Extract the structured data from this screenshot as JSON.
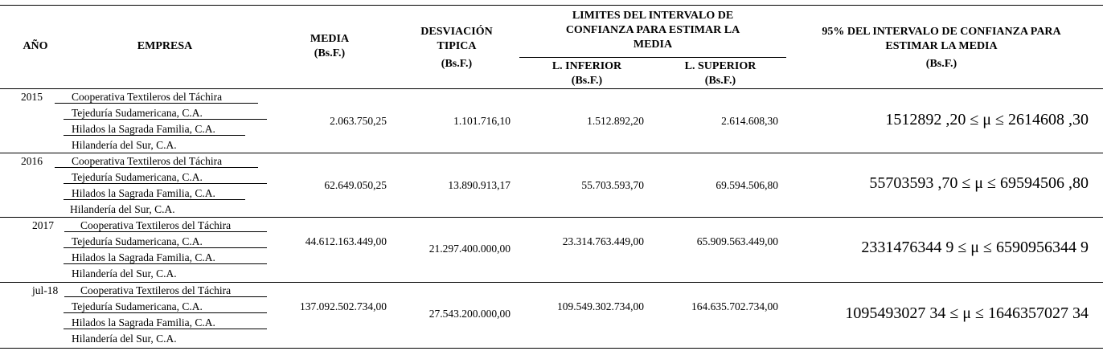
{
  "header": {
    "year": "AÑO",
    "company": "EMPRESA",
    "mean": "MEDIA",
    "mean_unit": "(Bs.F.)",
    "stddev_line1": "DESVIACIÓN",
    "stddev_line2": "TIPICA",
    "stddev_unit": "(Bs.F.)",
    "limits_line1": "LIMITES DEL INTERVALO DE",
    "limits_line2": "CONFIANZA PARA ESTIMAR LA",
    "limits_line3": "MEDIA",
    "lower": "L. INFERIOR",
    "lower_unit": "(Bs.F.)",
    "upper": "L. SUPERIOR",
    "upper_unit": "(Bs.F.)",
    "ci_line1": "95% DEL INTERVALO DE CONFIANZA PARA",
    "ci_line2": "ESTIMAR LA MEDIA",
    "ci_unit": "(Bs.F.)"
  },
  "rows": [
    {
      "year": "2015",
      "companies": [
        "Cooperativa Textileros del Táchira",
        "Tejeduría Sudamericana, C.A.",
        "Hilados la Sagrada Familia, C.A.",
        "Hilandería del Sur, C.A."
      ],
      "mean": "2.063.750,25",
      "stddev": "1.101.716,10",
      "lower": "1.512.892,20",
      "upper": "2.614.608,30",
      "ci": "1512892 ,20 ≤ μ ≤ 2614608 ,30"
    },
    {
      "year": "2016",
      "companies": [
        "Cooperativa Textileros del Táchira",
        "Tejeduría Sudamericana, C.A.",
        "Hilados la Sagrada Familia, C.A.",
        "Hilandería del Sur, C.A."
      ],
      "mean": "62.649.050,25",
      "stddev": "13.890.913,17",
      "lower": "55.703.593,70",
      "upper": "69.594.506,80",
      "ci": "55703593 ,70 ≤ μ ≤ 69594506 ,80"
    },
    {
      "year": "2017",
      "companies": [
        "Cooperativa Textileros del Táchira",
        "Tejeduría Sudamericana, C.A.",
        "Hilados la Sagrada Familia, C.A.",
        "Hilandería del Sur, C.A."
      ],
      "mean": "44.612.163.449,00",
      "stddev": "21.297.400.000,00",
      "lower": "23.314.763.449,00",
      "upper": "65.909.563.449,00",
      "ci": "2331476344 9 ≤ μ ≤ 6590956344 9"
    },
    {
      "year": "jul-18",
      "companies": [
        "Cooperativa Textileros del Táchira",
        "Tejeduría Sudamericana, C.A.",
        "Hilados la Sagrada Familia, C.A.",
        "Hilandería del Sur, C.A."
      ],
      "mean": "137.092.502.734,00",
      "stddev": "27.543.200.000,00",
      "lower": "109.549.302.734,00",
      "upper": "164.635.702.734,00",
      "ci": "1095493027 34 ≤ μ ≤ 1646357027 34"
    }
  ]
}
